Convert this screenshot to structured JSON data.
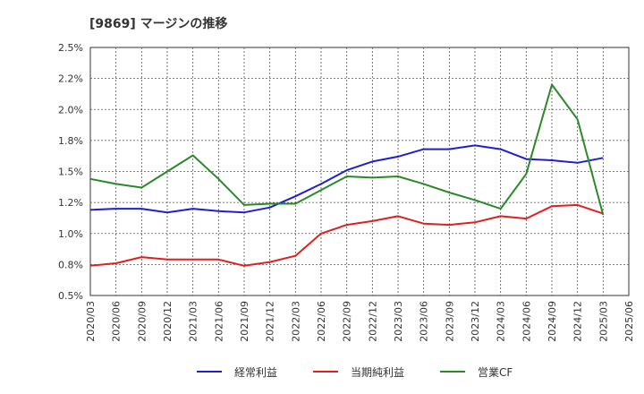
{
  "chart_data": {
    "type": "line",
    "title": "[9869]  マージンの推移",
    "xlabel": "",
    "ylabel": "",
    "x": [
      "2020/03",
      "2020/06",
      "2020/09",
      "2020/12",
      "2021/03",
      "2021/06",
      "2021/09",
      "2021/12",
      "2022/03",
      "2022/06",
      "2022/09",
      "2022/12",
      "2023/03",
      "2023/06",
      "2023/09",
      "2023/12",
      "2024/03",
      "2024/06",
      "2024/09",
      "2024/12",
      "2025/03"
    ],
    "x_ticks": [
      "2020/03",
      "2020/06",
      "2020/09",
      "2020/12",
      "2021/03",
      "2021/06",
      "2021/09",
      "2021/12",
      "2022/03",
      "2022/06",
      "2022/09",
      "2022/12",
      "2023/03",
      "2023/06",
      "2023/09",
      "2023/12",
      "2024/03",
      "2024/06",
      "2024/09",
      "2024/12",
      "2025/03",
      "2025/06"
    ],
    "y_ticks": [
      "2.5%",
      "2.2%",
      "2.0%",
      "1.8%",
      "1.5%",
      "1.2%",
      "1.0%",
      "0.8%",
      "0.5%"
    ],
    "ylim": [
      0.5,
      2.5
    ],
    "grid": true,
    "legend_position": "bottom",
    "series": [
      {
        "name": "経常利益",
        "color": "#1f1fd1",
        "values": [
          1.19,
          1.2,
          1.2,
          1.17,
          1.2,
          1.18,
          1.17,
          1.21,
          1.3,
          1.4,
          1.51,
          1.58,
          1.62,
          1.68,
          1.68,
          1.71,
          1.68,
          1.6,
          1.59,
          1.57,
          1.61
        ]
      },
      {
        "name": "当期純利益",
        "color": "#e02020",
        "values": [
          0.74,
          0.76,
          0.81,
          0.79,
          0.79,
          0.79,
          0.74,
          0.77,
          0.82,
          1.0,
          1.07,
          1.1,
          1.14,
          1.08,
          1.07,
          1.09,
          1.14,
          1.12,
          1.22,
          1.23,
          1.16
        ]
      },
      {
        "name": "営業CF",
        "color": "#2a8a2a",
        "values": [
          1.44,
          1.4,
          1.37,
          1.5,
          1.63,
          1.44,
          1.23,
          1.24,
          1.24,
          1.35,
          1.46,
          1.45,
          1.46,
          1.4,
          1.33,
          1.27,
          1.2,
          1.48,
          2.2,
          1.92,
          1.15
        ]
      }
    ]
  }
}
